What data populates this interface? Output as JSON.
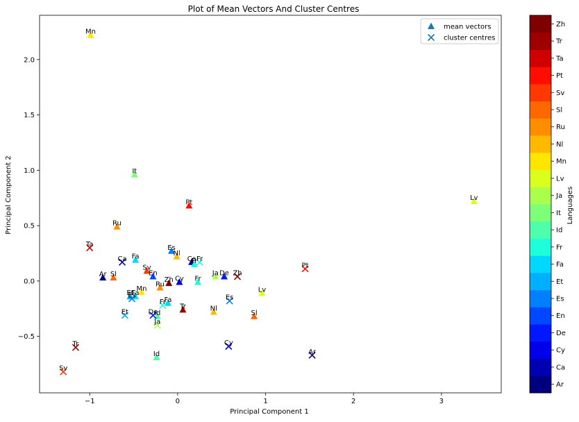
{
  "chart_data": {
    "type": "scatter",
    "title": "Plot of Mean Vectors And Cluster Centres",
    "xlabel": "Principal Component 1",
    "ylabel": "Principal Component 2",
    "xlim": [
      -1.57,
      3.68
    ],
    "ylim": [
      -1.01,
      2.4
    ],
    "xticks": [
      -1,
      0,
      1,
      2,
      3
    ],
    "yticks": [
      -0.5,
      0.0,
      0.5,
      1.0,
      1.5,
      2.0
    ],
    "xtick_labels": [
      "−1",
      "0",
      "1",
      "2",
      "3"
    ],
    "ytick_labels": [
      "−0.5",
      "0.0",
      "0.5",
      "1.0",
      "1.5",
      "2.0"
    ],
    "legend": {
      "placement": "top-right",
      "entries": [
        {
          "label": "mean vectors",
          "marker": "triangle",
          "color": "#1f77b4"
        },
        {
          "label": "cluster centres",
          "marker": "x",
          "color": "#1f77b4"
        }
      ]
    },
    "colorbar": {
      "label": "Languages",
      "categories": [
        "Ar",
        "Ca",
        "Cy",
        "De",
        "En",
        "Es",
        "Et",
        "Fa",
        "Fr",
        "Id",
        "It",
        "Ja",
        "Lv",
        "Mn",
        "Nl",
        "Ru",
        "Sl",
        "Sv",
        "Pt",
        "Ta",
        "Tr",
        "Zh"
      ],
      "colors": [
        "#00007f",
        "#0000b2",
        "#0000ea",
        "#0018ff",
        "#0048ff",
        "#0080ff",
        "#00b0ff",
        "#00d8ff",
        "#1cffda",
        "#4dffaa",
        "#7dff7a",
        "#aaff4d",
        "#daff1c",
        "#ffe600",
        "#ffb900",
        "#ff8d00",
        "#ff6800",
        "#ff3800",
        "#ff0e00",
        "#d10000",
        "#9e0000",
        "#7f0000"
      ]
    },
    "series": [
      {
        "name": "mean vectors",
        "marker": "triangle",
        "points": [
          {
            "x": -0.99,
            "y": 2.22,
            "label": "Mn"
          },
          {
            "x": -0.49,
            "y": 0.96,
            "label": "It"
          },
          {
            "x": 0.13,
            "y": 0.68,
            "label": "Pt"
          },
          {
            "x": -0.69,
            "y": 0.49,
            "label": "Ru"
          },
          {
            "x": 3.37,
            "y": 0.72,
            "label": "Lv"
          },
          {
            "x": -0.07,
            "y": 0.27,
            "label": "Es"
          },
          {
            "x": -0.01,
            "y": 0.22,
            "label": "Nl"
          },
          {
            "x": 0.16,
            "y": 0.17,
            "label": "Ca"
          },
          {
            "x": 0.19,
            "y": 0.15,
            "label": "Fr"
          },
          {
            "x": -0.48,
            "y": 0.19,
            "label": "Fa"
          },
          {
            "x": -0.35,
            "y": 0.09,
            "label": "Sv"
          },
          {
            "x": -0.28,
            "y": 0.04,
            "label": "En"
          },
          {
            "x": -0.85,
            "y": 0.03,
            "label": "Ar"
          },
          {
            "x": -0.73,
            "y": 0.03,
            "label": "Sl"
          },
          {
            "x": 0.02,
            "y": -0.01,
            "label": "Cy"
          },
          {
            "x": 0.43,
            "y": 0.04,
            "label": "Ja"
          },
          {
            "x": 0.53,
            "y": 0.04,
            "label": "De"
          },
          {
            "x": 0.23,
            "y": -0.01,
            "label": "Fr"
          },
          {
            "x": -0.1,
            "y": -0.02,
            "label": "Zh"
          },
          {
            "x": -0.2,
            "y": -0.06,
            "label": "Ru"
          },
          {
            "x": -0.41,
            "y": -0.1,
            "label": "Mn"
          },
          {
            "x": -0.54,
            "y": -0.14,
            "label": "Et"
          },
          {
            "x": -0.48,
            "y": -0.14,
            "label": "Fa"
          },
          {
            "x": -0.11,
            "y": -0.2,
            "label": "Fa"
          },
          {
            "x": -0.23,
            "y": -0.32,
            "label": "Id"
          },
          {
            "x": 0.06,
            "y": -0.26,
            "label": "Tr"
          },
          {
            "x": 0.41,
            "y": -0.28,
            "label": "Nl"
          },
          {
            "x": 0.96,
            "y": -0.11,
            "label": "Lv"
          },
          {
            "x": 0.87,
            "y": -0.32,
            "label": "Sl"
          },
          {
            "x": -0.24,
            "y": -0.69,
            "label": "Id"
          }
        ]
      },
      {
        "name": "cluster centres",
        "marker": "x",
        "points": [
          {
            "x": -1.0,
            "y": 0.3,
            "label": "Ta"
          },
          {
            "x": -0.63,
            "y": 0.17,
            "label": "Ca"
          },
          {
            "x": 0.25,
            "y": 0.17,
            "label": "Fr"
          },
          {
            "x": 0.68,
            "y": 0.04,
            "label": "Zh"
          },
          {
            "x": 1.45,
            "y": 0.11,
            "label": "Pt"
          },
          {
            "x": -0.52,
            "y": -0.16,
            "label": "Es"
          },
          {
            "x": -0.17,
            "y": -0.22,
            "label": "Fr"
          },
          {
            "x": -0.28,
            "y": -0.31,
            "label": "De"
          },
          {
            "x": 0.59,
            "y": -0.18,
            "label": "Es"
          },
          {
            "x": -0.6,
            "y": -0.31,
            "label": "Et"
          },
          {
            "x": -1.16,
            "y": -0.6,
            "label": "Tr"
          },
          {
            "x": 0.58,
            "y": -0.59,
            "label": "Cy"
          },
          {
            "x": 1.53,
            "y": -0.67,
            "label": "Ar"
          },
          {
            "x": -1.3,
            "y": -0.82,
            "label": "Sv"
          },
          {
            "x": -0.23,
            "y": -0.4,
            "label": "Ja"
          }
        ]
      }
    ]
  }
}
